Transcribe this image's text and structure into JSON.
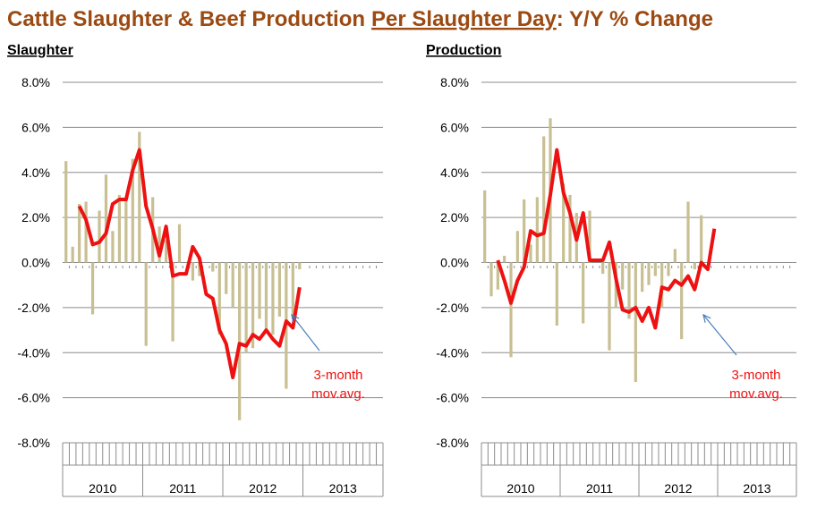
{
  "title": {
    "before": "Cattle Slaughter & Beef Production",
    "underlined": "Per Slaughter Day",
    "after": ": Y/Y % Change"
  },
  "chart_data": [
    {
      "type": "combo",
      "subtitle": "Slaughter",
      "categories": [
        null,
        null,
        null,
        null,
        null,
        null,
        null,
        null,
        null,
        null,
        null,
        null,
        null,
        null,
        null,
        null,
        null,
        null,
        null,
        null,
        null,
        null,
        null,
        null,
        null,
        null,
        null,
        null,
        null,
        null,
        null,
        null,
        null,
        null,
        null,
        null,
        null,
        null,
        null,
        null,
        null,
        null,
        null,
        null,
        null,
        null,
        null,
        null
      ],
      "x_groups": [
        "2010",
        "2011",
        "2012",
        "2013"
      ],
      "ylim": [
        -8,
        8
      ],
      "yticks": [
        {
          "value": 8,
          "label": "8.0%"
        },
        {
          "value": 6,
          "label": "6.0%"
        },
        {
          "value": 4,
          "label": "4.0%"
        },
        {
          "value": 2,
          "label": "2.0%"
        },
        {
          "value": 0,
          "label": "0.0%"
        },
        {
          "value": -2,
          "label": "-2.0%"
        },
        {
          "value": -4,
          "label": "-4.0%"
        },
        {
          "value": -6,
          "label": "-6.0%"
        },
        {
          "value": -8,
          "label": "-8.0%"
        }
      ],
      "grid": true,
      "annotation": [
        "3-month",
        "mov.avg."
      ],
      "series": [
        {
          "kind": "bar",
          "color": "#c8bf93",
          "values": [
            4.5,
            0.7,
            2.6,
            2.7,
            -2.3,
            2.3,
            3.9,
            1.4,
            3.0,
            2.8,
            4.6,
            5.8,
            -3.7,
            2.9,
            1.6,
            1.0,
            -3.5,
            1.7,
            0.0,
            -0.8,
            -0.6,
            0.0,
            -0.4,
            -3.2,
            -1.4,
            -2.0,
            -7.0,
            -4.0,
            -3.8,
            -2.5,
            -3.0,
            -3.2,
            -2.4,
            -5.6,
            -2.5,
            -0.3,
            null,
            null,
            null,
            null,
            null,
            null,
            null,
            null,
            null,
            null,
            null,
            null
          ]
        },
        {
          "kind": "line",
          "color": "#ee1111",
          "values": [
            null,
            null,
            2.5,
            1.9,
            0.8,
            0.9,
            1.3,
            2.6,
            2.8,
            2.8,
            4.1,
            5.0,
            2.5,
            1.5,
            0.3,
            1.6,
            -0.6,
            -0.5,
            -0.5,
            0.7,
            0.2,
            -1.4,
            -1.6,
            -3.0,
            -3.6,
            -5.1,
            -3.6,
            -3.7,
            -3.2,
            -3.4,
            -3.0,
            -3.4,
            -3.7,
            -2.6,
            -2.9,
            -1.1,
            null,
            null,
            null,
            null,
            null,
            null,
            null,
            null,
            null,
            null,
            null,
            null
          ]
        }
      ]
    },
    {
      "type": "combo",
      "subtitle": "Production",
      "categories": [
        null,
        null,
        null,
        null,
        null,
        null,
        null,
        null,
        null,
        null,
        null,
        null,
        null,
        null,
        null,
        null,
        null,
        null,
        null,
        null,
        null,
        null,
        null,
        null,
        null,
        null,
        null,
        null,
        null,
        null,
        null,
        null,
        null,
        null,
        null,
        null,
        null,
        null,
        null,
        null,
        null,
        null,
        null,
        null,
        null,
        null,
        null,
        null
      ],
      "x_groups": [
        "2010",
        "2011",
        "2012",
        "2013"
      ],
      "ylim": [
        -8,
        8
      ],
      "yticks": [
        {
          "value": 8,
          "label": "8.0%"
        },
        {
          "value": 6,
          "label": "6.0%"
        },
        {
          "value": 4,
          "label": "4.0%"
        },
        {
          "value": 2,
          "label": "2.0%"
        },
        {
          "value": 0,
          "label": "0.0%"
        },
        {
          "value": -2,
          "label": "-2.0%"
        },
        {
          "value": -4,
          "label": "-4.0%"
        },
        {
          "value": -6,
          "label": "-6.0%"
        },
        {
          "value": -8,
          "label": "-8.0%"
        }
      ],
      "grid": true,
      "annotation": [
        "3-month",
        "mov.avg."
      ],
      "series": [
        {
          "kind": "bar",
          "color": "#c8bf93",
          "values": [
            3.2,
            -1.5,
            -1.2,
            0.3,
            -4.2,
            1.4,
            2.8,
            0.8,
            2.9,
            5.6,
            6.4,
            -2.8,
            3.5,
            3.0,
            2.2,
            -2.7,
            2.3,
            0.0,
            -0.5,
            -3.9,
            -2.0,
            -1.2,
            -2.5,
            -5.3,
            -1.3,
            -1.0,
            -0.6,
            -2.0,
            -0.6,
            0.6,
            -3.4,
            2.7,
            -0.3,
            2.1,
            null,
            null,
            null,
            null,
            null,
            null,
            null,
            null,
            null,
            null,
            null,
            null,
            null,
            null
          ]
        },
        {
          "kind": "line",
          "color": "#ee1111",
          "values": [
            null,
            null,
            0.1,
            -0.8,
            -1.8,
            -0.8,
            -0.2,
            1.4,
            1.2,
            1.3,
            3.0,
            5.0,
            3.1,
            2.2,
            1.0,
            2.2,
            0.1,
            0.1,
            0.1,
            0.9,
            -0.7,
            -2.1,
            -2.2,
            -2.0,
            -2.6,
            -2.0,
            -2.9,
            -1.1,
            -1.2,
            -0.8,
            -1.0,
            -0.6,
            -1.2,
            0.0,
            -0.3,
            1.5,
            null,
            null,
            null,
            null,
            null,
            null,
            null,
            null,
            null,
            null,
            null,
            null
          ]
        }
      ]
    }
  ]
}
